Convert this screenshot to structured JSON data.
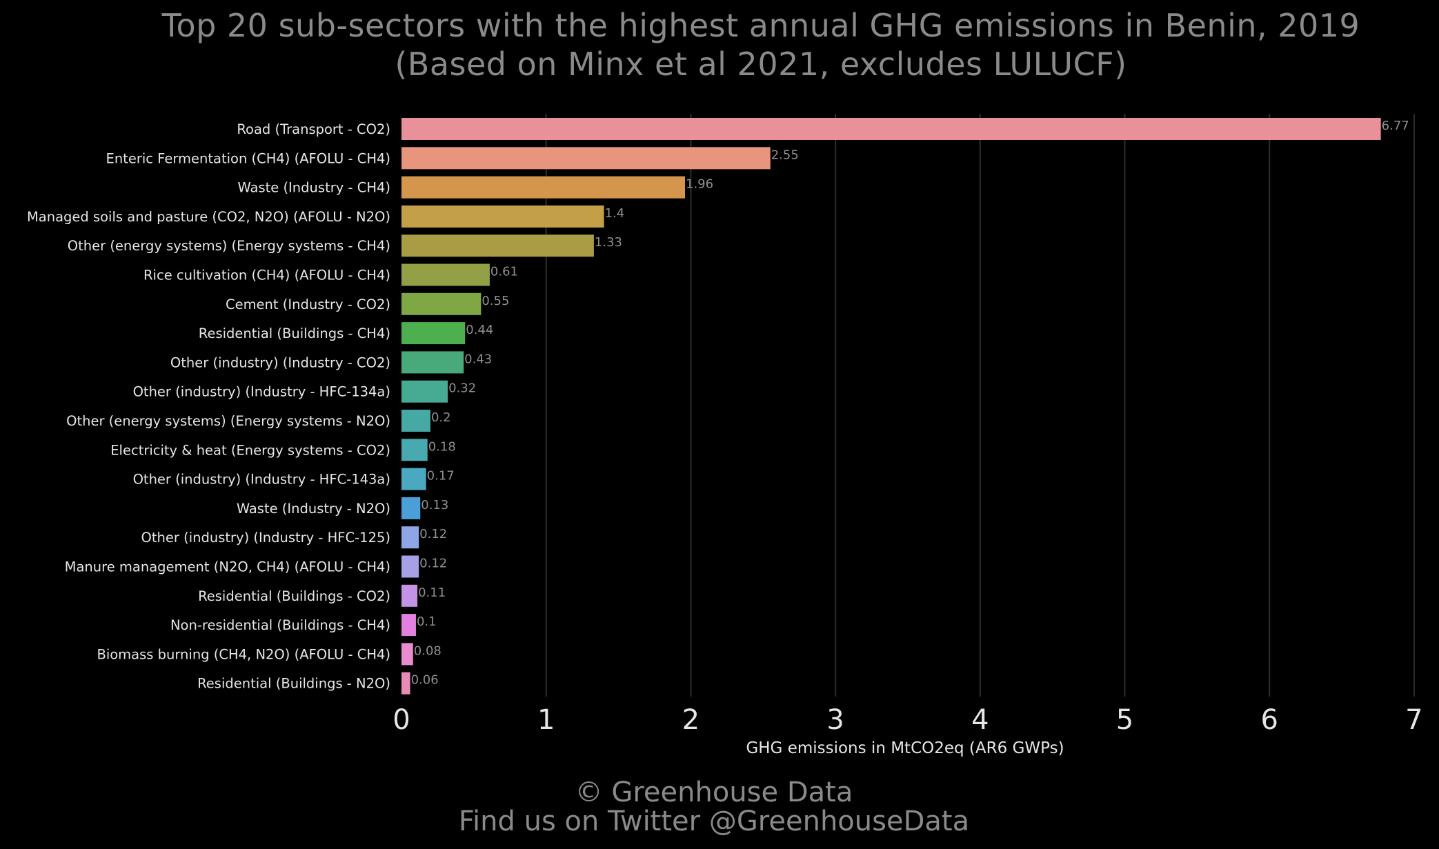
{
  "chart_data": {
    "type": "bar",
    "orientation": "horizontal",
    "title": "Top 20 sub-sectors with the highest annual GHG emissions in Benin, 2019",
    "subtitle": "(Based on Minx et al 2021, excludes LULUCF)",
    "xlabel": "GHG emissions in MtCO2eq (AR6 GWPs)",
    "ylabel": "",
    "xlim": [
      0,
      7
    ],
    "xticks": [
      "0",
      "1",
      "2",
      "3",
      "4",
      "5",
      "6",
      "7"
    ],
    "grid": "vertical",
    "categories": [
      "Road (Transport - CO2)",
      "Enteric Fermentation (CH4) (AFOLU - CH4)",
      "Waste (Industry - CH4)",
      "Managed soils and pasture (CO2, N2O) (AFOLU - N2O)",
      "Other (energy systems) (Energy systems - CH4)",
      "Rice cultivation (CH4) (AFOLU - CH4)",
      "Cement (Industry - CO2)",
      "Residential (Buildings - CH4)",
      "Other (industry) (Industry - CO2)",
      "Other (industry) (Industry - HFC-134a)",
      "Other (energy systems) (Energy systems - N2O)",
      "Electricity & heat (Energy systems - CO2)",
      "Other (industry) (Industry - HFC-143a)",
      "Waste (Industry - N2O)",
      "Other (industry) (Industry - HFC-125)",
      "Manure management (N2O, CH4) (AFOLU - CH4)",
      "Residential (Buildings - CO2)",
      "Non-residential (Buildings - CH4)",
      "Biomass burning (CH4, N2O) (AFOLU - CH4)",
      "Residential (Buildings - N2O)"
    ],
    "values": [
      6.77,
      2.55,
      1.96,
      1.4,
      1.33,
      0.61,
      0.55,
      0.44,
      0.43,
      0.32,
      0.2,
      0.18,
      0.17,
      0.13,
      0.12,
      0.12,
      0.11,
      0.1,
      0.08,
      0.06
    ],
    "value_labels": [
      "6.77",
      "2.55",
      "1.96",
      "1.4",
      "1.33",
      "0.61",
      "0.55",
      "0.44",
      "0.43",
      "0.32",
      "0.2",
      "0.18",
      "0.17",
      "0.13",
      "0.12",
      "0.12",
      "0.11",
      "0.1",
      "0.08",
      "0.06"
    ],
    "colors": [
      "#e8919a",
      "#e8957d",
      "#d4964c",
      "#c39f4a",
      "#a89c45",
      "#94a046",
      "#7fa845",
      "#4daf4e",
      "#48aa7a",
      "#47ab94",
      "#47a9a3",
      "#49a9b0",
      "#4aa8c0",
      "#4a9fd6",
      "#8ea6e6",
      "#a6a0e6",
      "#c493e8",
      "#e27fe0",
      "#e88ccf",
      "#ea8bb7"
    ]
  },
  "footer": {
    "line1": "© Greenhouse Data",
    "line2": "Find us on Twitter @GreenhouseData"
  },
  "colors": {
    "background": "#000000",
    "text": "#e6e6e6",
    "title": "#8a8a8a",
    "grid": "#2e2e2e",
    "value_label": "#8f8f8f"
  }
}
